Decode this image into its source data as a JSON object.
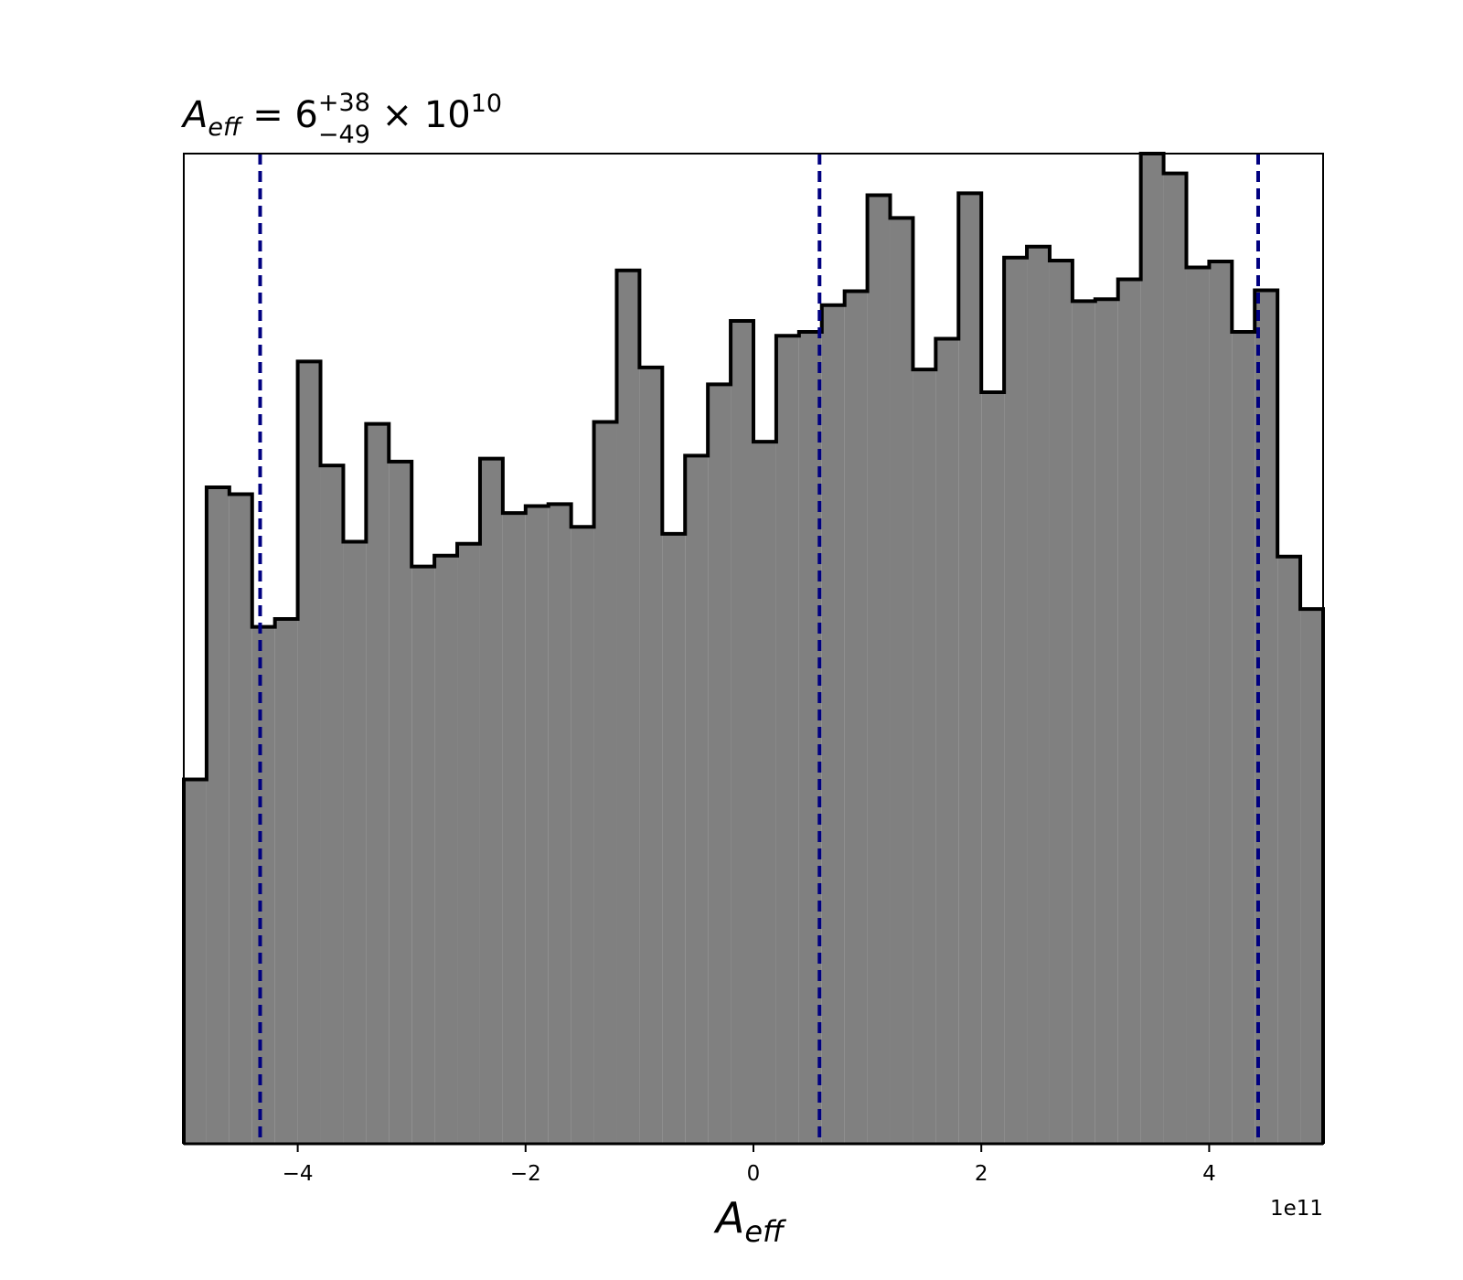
{
  "chart_data": {
    "type": "bar",
    "subtype": "step-histogram",
    "title": {
      "symbol": "A",
      "symbol_sub": "eff",
      "equals": " = 6",
      "sup": "+38",
      "sub": "−49",
      "times": " × 10",
      "exp": "10"
    },
    "xlabel": {
      "symbol": "A",
      "sub": "eff"
    },
    "ylabel": "",
    "x_offset_label": "1e11",
    "x_scale": 100000000000.0,
    "xlim": [
      -5.0,
      5.0
    ],
    "ylim": [
      0,
      100
    ],
    "x_ticks": [
      -4,
      -2,
      0,
      2,
      4
    ],
    "x_tick_labels": [
      "−4",
      "−2",
      "0",
      "2",
      "4"
    ],
    "show_y_ticks": false,
    "grid": false,
    "legend": "none",
    "bins": {
      "start": -5.0,
      "width": 0.2,
      "counts": [
        36.8,
        66.3,
        65.6,
        52.2,
        53.0,
        79.0,
        68.5,
        60.8,
        72.7,
        68.9,
        58.3,
        59.4,
        60.6,
        69.2,
        63.7,
        64.4,
        64.6,
        62.3,
        72.9,
        88.2,
        78.4,
        61.6,
        69.5,
        76.7,
        83.1,
        70.9,
        81.6,
        82.0,
        84.7,
        86.1,
        95.8,
        93.5,
        78.2,
        81.3,
        96.0,
        75.9,
        89.5,
        90.6,
        89.2,
        85.1,
        85.3,
        87.3,
        100.0,
        98.0,
        88.5,
        89.1,
        82.0,
        86.2,
        59.3,
        54.0
      ]
    },
    "vlines": [
      -4.33,
      0.58,
      4.43
    ],
    "colors": {
      "fill": "#808080",
      "edge": "#000000",
      "vline": "#000080",
      "frame": "#000000"
    }
  }
}
